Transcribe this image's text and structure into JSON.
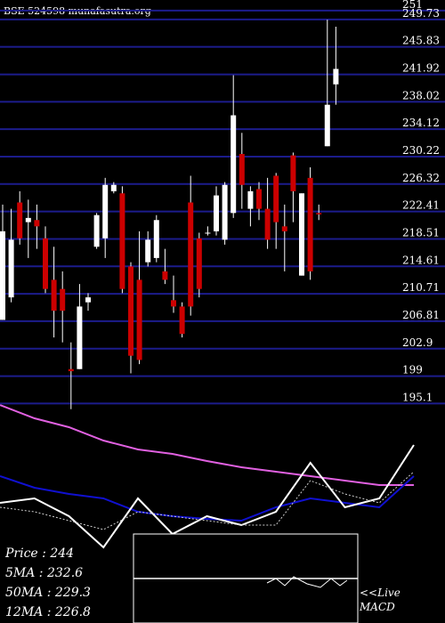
{
  "chart_data": {
    "type": "candlestick",
    "title": "BSE 524598 munafasutra.org",
    "open": [
      207.0,
      210.2,
      223.7,
      220.9,
      221.2,
      218.6,
      212.7,
      211.4,
      200.0,
      200.0,
      209.5,
      217.4,
      218.6,
      225.3,
      225.0,
      214.6,
      212.7,
      215.2,
      215.8,
      213.9,
      209.8,
      208.9,
      223.7,
      218.6,
      219.4,
      219.6,
      218.4,
      222.2,
      230.6,
      222.8,
      225.6,
      222.8,
      227.5,
      220.3,
      230.4,
      213.3,
      227.2,
      222.2,
      231.7,
      240.5
    ],
    "high": [
      223.4,
      222.8,
      225.3,
      224.1,
      223.4,
      220.3,
      217.4,
      213.9,
      203.8,
      212.1,
      210.8,
      222.2,
      227.2,
      226.6,
      226.0,
      215.2,
      219.6,
      219.6,
      221.9,
      217.1,
      213.3,
      209.5,
      227.5,
      219.4,
      220.3,
      226.0,
      226.6,
      241.8,
      233.6,
      226.0,
      226.6,
      227.2,
      227.9,
      223.4,
      230.8,
      225.0,
      228.7,
      223.4,
      249.7,
      248.7
    ],
    "low": [
      207.0,
      209.5,
      217.7,
      215.8,
      217.1,
      210.8,
      204.5,
      203.8,
      194.3,
      200.0,
      208.3,
      217.1,
      215.8,
      225.0,
      210.8,
      199.4,
      200.7,
      214.6,
      215.2,
      212.1,
      208.0,
      204.5,
      207.6,
      210.2,
      219.0,
      219.0,
      217.7,
      221.5,
      222.8,
      220.3,
      221.2,
      217.1,
      217.1,
      213.9,
      220.9,
      213.3,
      212.7,
      221.2,
      231.7,
      237.6
    ],
    "close": [
      219.6,
      218.4,
      218.6,
      221.5,
      220.3,
      211.4,
      208.3,
      208.3,
      199.7,
      208.9,
      210.2,
      221.9,
      226.2,
      226.2,
      211.4,
      201.9,
      201.3,
      218.4,
      221.2,
      212.7,
      208.9,
      205.0,
      208.9,
      211.4,
      219.4,
      224.7,
      226.2,
      236.1,
      226.2,
      225.3,
      222.8,
      218.4,
      220.9,
      219.6,
      225.3,
      225.0,
      213.9,
      222.0,
      237.6,
      242.7
    ],
    "up_color": "#ffffff",
    "down_color": "#cc0000",
    "grid_color": "#1c1c8c",
    "ylim": [
      193,
      252.5
    ],
    "yticks": [
      251,
      249.73,
      245.83,
      241.92,
      238.02,
      234.12,
      230.22,
      226.32,
      222.41,
      218.51,
      214.61,
      210.71,
      206.81,
      202.9,
      199,
      195.1
    ],
    "lower_ylim": [
      0,
      100
    ],
    "lower_series": [
      {
        "color": "#e060e0",
        "values": [
          98,
          92,
          88,
          82,
          78,
          76,
          72.8,
          70,
          68,
          66,
          64,
          62,
          62
        ]
      },
      {
        "color": "#1010d0",
        "values": [
          66,
          60.8,
          58,
          56,
          50,
          48,
          46.8,
          46,
          52,
          56,
          54,
          52,
          66
        ]
      },
      {
        "color": "#ffffff",
        "values": [
          54,
          56,
          48,
          34,
          56,
          40,
          48,
          44,
          50,
          72,
          52,
          56,
          80
        ]
      },
      {
        "color": "#cccccc",
        "dashed": true,
        "values": [
          52,
          50,
          46,
          42,
          50,
          48,
          46,
          44,
          44,
          64,
          58,
          54,
          68
        ]
      }
    ],
    "legend": [
      "Price : 244",
      "5MA : 232.6",
      "50MA : 229.3",
      "12MA : 226.8"
    ],
    "macd_label": [
      "<<Live",
      "MACD"
    ]
  }
}
